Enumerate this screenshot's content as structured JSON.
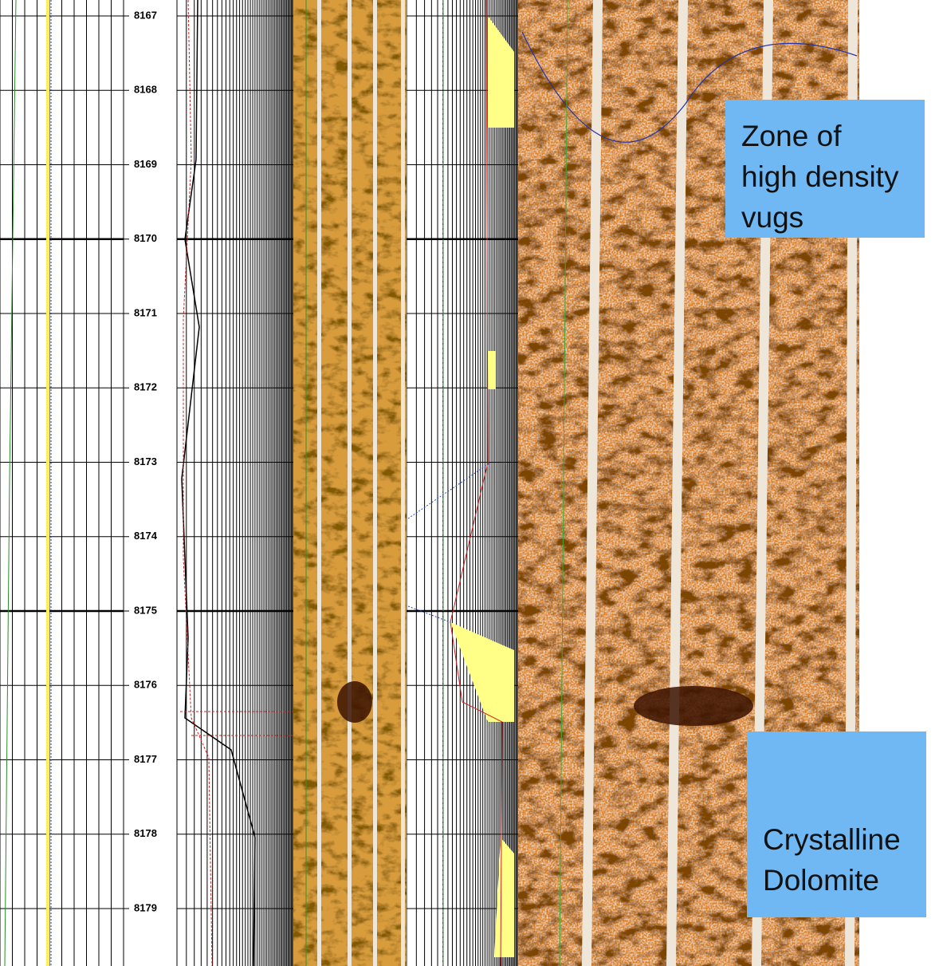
{
  "depth_track": {
    "depths": [
      8167,
      8168,
      8169,
      8170,
      8171,
      8172,
      8173,
      8174,
      8175,
      8176,
      8177,
      8178,
      8179
    ]
  },
  "annotations": [
    {
      "lines": [
        "Zone of",
        "high density",
        "vugs"
      ]
    },
    {
      "lines": [
        "Crystalline",
        "Dolomite"
      ]
    }
  ]
}
